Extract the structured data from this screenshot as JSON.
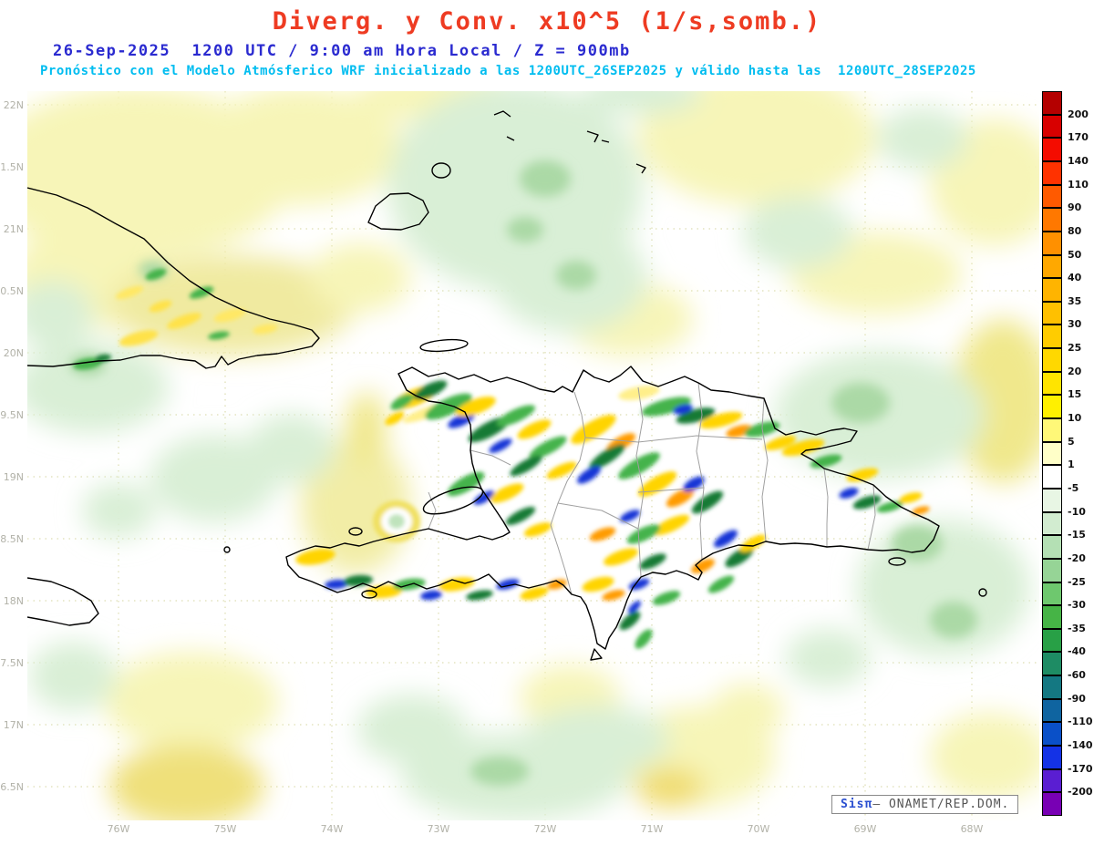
{
  "title": "Diverg. y Conv. x10^5 (1/s,somb.)",
  "subtitle1": "26-Sep-2025  1200 UTC / 9:00 am Hora Local / Z = 900mb",
  "subtitle2": "Pronóstico con el Modelo Atmósferico WRF inicializado a las 1200UTC_26SEP2025 y válido hasta las  1200UTC_28SEP2025",
  "footer": {
    "brand": "Sisπ",
    "org": "– ONAMET/REP.DOM."
  },
  "chart_data": {
    "type": "heatmap",
    "title": "Diverg. y Conv. x10^5 (1/s,somb.)",
    "variable": "Divergencia y Convergencia (sombreado)",
    "units": "x10^-5 1/s",
    "level": "900mb",
    "model": "WRF",
    "run_date": "26-Sep-2025",
    "run_time": "1200 UTC / 9:00 am Hora Local",
    "init": "1200UTC_26SEP2025",
    "valid_until": "1200UTC_28SEP2025",
    "source": "ONAMET / REP. DOM.",
    "grid": true,
    "legend_position": "right",
    "x_tick_labels": [
      "76W",
      "75W",
      "74W",
      "73W",
      "72W",
      "71W",
      "70W",
      "69W",
      "68W"
    ],
    "y_tick_labels": [
      "22N",
      "1.5N",
      "21N",
      "0.5N",
      "20N",
      "9.5N",
      "19N",
      "8.5N",
      "18N",
      "7.5N",
      "17N",
      "6.5N"
    ],
    "lon_range_deg_west": [
      76.9,
      67.4
    ],
    "lat_range_deg_north": [
      16.4,
      22.1
    ],
    "colorbar": {
      "levels": [
        200,
        170,
        140,
        110,
        90,
        80,
        50,
        40,
        35,
        30,
        25,
        20,
        15,
        10,
        5,
        1,
        -5,
        -10,
        -15,
        -20,
        -25,
        -30,
        -35,
        -40,
        -60,
        -90,
        -110,
        -140,
        -170,
        -200
      ],
      "colors": [
        "#b40000",
        "#d80000",
        "#f40c00",
        "#ff3200",
        "#ff5a00",
        "#ff7800",
        "#ff9000",
        "#ffa800",
        "#ffb400",
        "#ffc000",
        "#ffcc00",
        "#ffd800",
        "#ffe400",
        "#fff000",
        "#fff878",
        "#ffffc8",
        "#ffffff",
        "#e8f6e4",
        "#d2ecd0",
        "#b4e0b4",
        "#96d496",
        "#6ec86e",
        "#46b446",
        "#28a046",
        "#1e8c64",
        "#147882",
        "#0f64a0",
        "#0a50c8",
        "#1432e6",
        "#5a1ed2",
        "#7800b4"
      ]
    },
    "geography": [
      "eastern Cuba",
      "Hispaniola (Haiti / Dominican Republic)",
      "east tip of Jamaica",
      "Great Inagua",
      "Little Inagua",
      "Turks & Caicos cays",
      "Île de la Gonâve",
      "Tortuga",
      "Mona",
      "Saona",
      "Beata",
      "Île à Vache"
    ],
    "field_summary": [
      {
        "region": "open ocean",
        "pattern": "weak signal, mostly -10 to +10 (pale green / pale yellow patches)"
      },
      {
        "region": "eastern Cuba",
        "pattern": "mottled weak bands of ±5 to ±20 over terrain"
      },
      {
        "region": "Cordillera Central and northern Hispaniola",
        "pattern": "NW-SE banded couplets of strong convergence (green/blue, -20 to -60) and divergence (yellow/orange, +20 to +50)"
      },
      {
        "region": "southern Haiti peninsula",
        "pattern": "alternating strong divergence/convergence streaks along the mountain axis"
      },
      {
        "region": "eastern Dominican Republic",
        "pattern": "moderate yellow divergence with embedded green/blue convergence cores"
      }
    ]
  }
}
